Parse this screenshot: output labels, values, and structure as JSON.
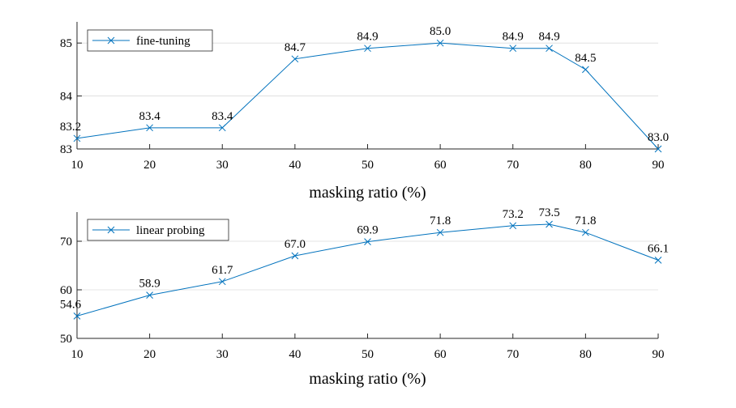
{
  "chart_data": [
    {
      "type": "line",
      "legend": "fine-tuning",
      "legend_position": "top-left",
      "xlabel": "masking ratio (%)",
      "ylabel": "",
      "x": [
        10,
        20,
        30,
        40,
        50,
        60,
        70,
        75,
        80,
        90
      ],
      "values": [
        83.2,
        83.4,
        83.4,
        84.7,
        84.9,
        85.0,
        84.9,
        84.9,
        84.5,
        83.0
      ],
      "labels": [
        "83.2",
        "83.4",
        "83.4",
        "84.7",
        "84.9",
        "85.0",
        "84.9",
        "84.9",
        "84.5",
        "83.0"
      ],
      "xlim": [
        10,
        90
      ],
      "ylim": [
        83,
        85.4
      ],
      "xticks": [
        10,
        20,
        30,
        40,
        50,
        60,
        70,
        80,
        90
      ],
      "xtick_labels": [
        "10",
        "20",
        "30",
        "40",
        "50",
        "60",
        "70",
        "80",
        "90"
      ],
      "yticks": [
        83,
        84,
        85
      ],
      "ytick_labels": [
        "83",
        "84",
        "85"
      ],
      "grid": "horizontal",
      "color": "#0072BD",
      "marker": "x"
    },
    {
      "type": "line",
      "legend": "linear probing",
      "legend_position": "top-left",
      "xlabel": "masking ratio (%)",
      "ylabel": "",
      "x": [
        10,
        20,
        30,
        40,
        50,
        60,
        70,
        75,
        80,
        90
      ],
      "values": [
        54.6,
        58.9,
        61.7,
        67.0,
        69.9,
        71.8,
        73.2,
        73.5,
        71.8,
        66.1
      ],
      "labels": [
        "54.6",
        "58.9",
        "61.7",
        "67.0",
        "69.9",
        "71.8",
        "73.2",
        "73.5",
        "71.8",
        "66.1"
      ],
      "xlim": [
        10,
        90
      ],
      "ylim": [
        50,
        76
      ],
      "xticks": [
        10,
        20,
        30,
        40,
        50,
        60,
        70,
        80,
        90
      ],
      "xtick_labels": [
        "10",
        "20",
        "30",
        "40",
        "50",
        "60",
        "70",
        "80",
        "90"
      ],
      "yticks": [
        50,
        60,
        70
      ],
      "ytick_labels": [
        "50",
        "60",
        "70"
      ],
      "grid": "horizontal",
      "color": "#0072BD",
      "marker": "x"
    }
  ]
}
